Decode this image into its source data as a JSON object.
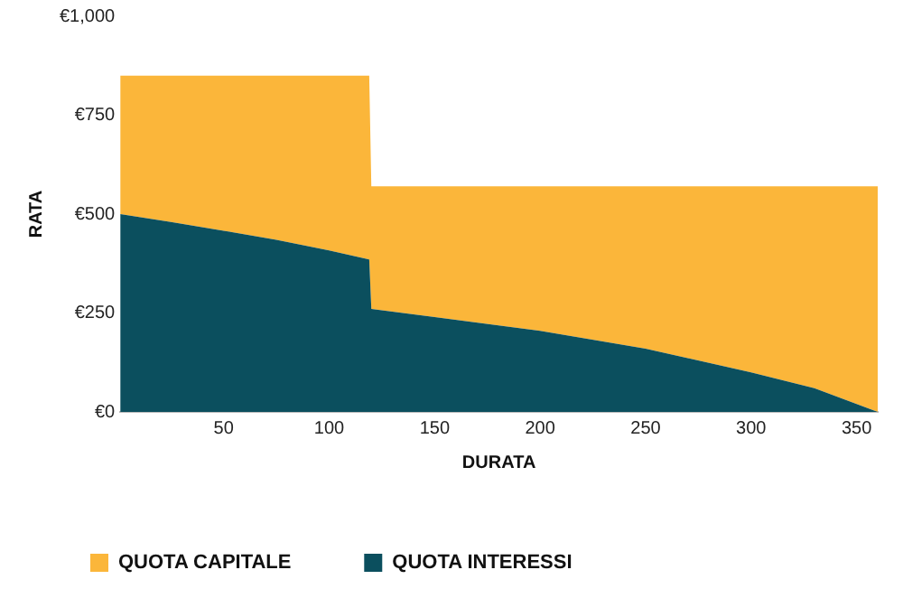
{
  "chart_data": {
    "type": "area",
    "stacked": true,
    "xlabel": "DURATA",
    "ylabel": "RATA",
    "x": [
      1,
      25,
      50,
      75,
      100,
      119,
      120,
      150,
      200,
      250,
      300,
      330,
      360
    ],
    "series": [
      {
        "name": "QUOTA INTERESSI",
        "color": "#0b4f5e",
        "values": [
          500,
          480,
          458,
          435,
          408,
          385,
          260,
          240,
          205,
          160,
          100,
          60,
          0
        ]
      },
      {
        "name": "QUOTA CAPITALE",
        "color": "#fbb63a",
        "values": [
          350,
          370,
          392,
          415,
          442,
          465,
          310,
          330,
          365,
          410,
          470,
          510,
          570
        ]
      }
    ],
    "xlim": [
      1,
      360
    ],
    "xticks": [
      50,
      100,
      150,
      200,
      250,
      300,
      350
    ],
    "ylim": [
      0,
      1000
    ],
    "yticks": [
      {
        "value": 0,
        "label": "€0"
      },
      {
        "value": 250,
        "label": "€250"
      },
      {
        "value": 500,
        "label": "€500"
      },
      {
        "value": 750,
        "label": "€750"
      },
      {
        "value": 1000,
        "label": "€1,000"
      }
    ],
    "grid": false,
    "legend": "bottom left"
  }
}
